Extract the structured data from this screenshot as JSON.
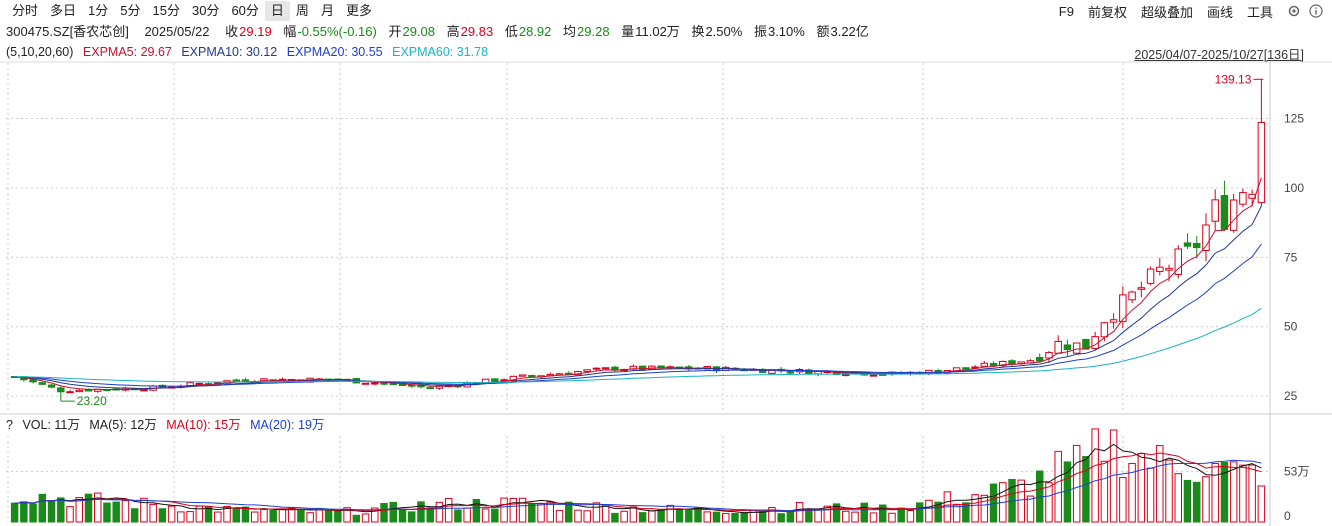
{
  "toolbar": {
    "tabs": [
      "分时",
      "多日",
      "1分",
      "5分",
      "15分",
      "30分",
      "60分",
      "日",
      "周",
      "月",
      "更多"
    ],
    "active_tab": "日",
    "tools": [
      "F9",
      "前复权",
      "超级叠加",
      "画线",
      "工具"
    ]
  },
  "quote": {
    "code": "300475.SZ[香农芯创]",
    "date": "2025/05/22",
    "close_label": "收",
    "close": "29.19",
    "change_label": "幅",
    "change": "-0.55%(-0.16)",
    "open_label": "开",
    "open": "29.08",
    "high_label": "高",
    "high": "29.83",
    "low_label": "低",
    "low": "28.92",
    "avg_label": "均",
    "avg": "29.28",
    "vol_label": "量",
    "vol": "11.02万",
    "turnover_label": "换",
    "turnover": "2.50%",
    "amp_label": "振",
    "amp": "3.10%",
    "amount_label": "额",
    "amount": "3.22亿"
  },
  "ma_legend": {
    "params": "(5,10,20,60)",
    "ema5": "EXPMA5: 29.67",
    "ema10": "EXPMA10: 30.12",
    "ema20": "EXPMA20: 30.55",
    "ema60": "EXPMA60: 31.78"
  },
  "range": "2025/04/07-2025/10/27[136日]",
  "vol_legend": {
    "help": "?",
    "vol": "VOL: 11万",
    "ma5": "MA(5): 12万",
    "ma10": "MA(10): 15万",
    "ma20": "MA(20): 19万"
  },
  "colors": {
    "up": "#d9001b",
    "down": "#1a8a1a",
    "ema5": "#c8102e",
    "ema10": "#1e3a8a",
    "ema20": "#1d3fd1",
    "ema60": "#19b3c6"
  },
  "chart_data": {
    "type": "candlestick",
    "price_axis": {
      "ticks": [
        25,
        50,
        75,
        100,
        125
      ],
      "ylim": [
        20,
        145
      ]
    },
    "volume_axis": {
      "ticks": [
        "0",
        "53万"
      ],
      "ylim_wan": [
        0,
        90
      ]
    },
    "max_label": "139.13",
    "min_label": "23.20",
    "days": 136,
    "close_profile": [
      [
        0,
        32
      ],
      [
        5,
        27
      ],
      [
        15,
        28
      ],
      [
        25,
        31
      ],
      [
        35,
        31
      ],
      [
        45,
        28
      ],
      [
        55,
        32
      ],
      [
        65,
        35
      ],
      [
        75,
        35
      ],
      [
        85,
        34
      ],
      [
        95,
        33
      ],
      [
        100,
        34
      ],
      [
        105,
        36
      ],
      [
        110,
        38
      ],
      [
        113,
        44
      ],
      [
        116,
        43
      ],
      [
        118,
        53
      ],
      [
        121,
        61
      ],
      [
        124,
        70
      ],
      [
        127,
        76
      ],
      [
        128,
        80
      ],
      [
        130,
        92
      ],
      [
        131,
        90
      ],
      [
        132,
        96
      ],
      [
        133,
        100
      ],
      [
        134,
        102
      ],
      [
        135,
        126
      ],
      [
        136,
        136
      ]
    ],
    "volume_profile": [
      [
        0,
        30
      ],
      [
        5,
        25
      ],
      [
        15,
        18
      ],
      [
        25,
        12
      ],
      [
        35,
        10
      ],
      [
        45,
        18
      ],
      [
        55,
        20
      ],
      [
        65,
        15
      ],
      [
        75,
        12
      ],
      [
        85,
        15
      ],
      [
        95,
        14
      ],
      [
        100,
        22
      ],
      [
        105,
        30
      ],
      [
        110,
        40
      ],
      [
        113,
        55
      ],
      [
        116,
        60
      ],
      [
        118,
        85
      ],
      [
        121,
        70
      ],
      [
        124,
        62
      ],
      [
        127,
        60
      ],
      [
        130,
        55
      ],
      [
        133,
        50
      ],
      [
        136,
        55
      ]
    ]
  }
}
